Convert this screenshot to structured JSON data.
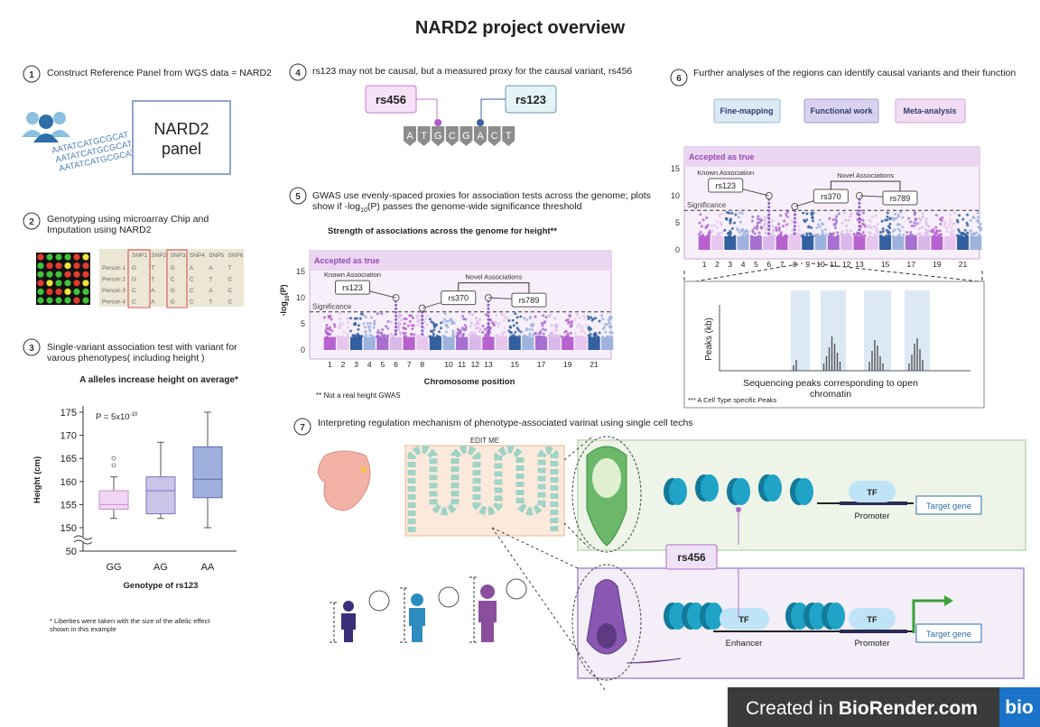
{
  "title": "NARD2 project overview",
  "panel1": {
    "number": "1",
    "heading": "Construct Reference Panel from WGS data = NARD2",
    "dna": [
      "AATATCATGCGCAT",
      "AATATCATGCGCAT",
      "AATATCATGCGCAT"
    ],
    "panel_label": "NARD2 panel"
  },
  "panel2": {
    "number": "2",
    "heading": "Genotyping using microarray Chip and Imputation using NARD2",
    "table": {
      "header": [
        "SNP1",
        "SNP2",
        "SNP3",
        "SNP4",
        "SNP5",
        "SNP6"
      ],
      "rows": [
        [
          "Person 1",
          "G",
          "T",
          "G",
          "A",
          "A",
          "T"
        ],
        [
          "Person 2",
          "G",
          "T",
          "C",
          "C",
          "T",
          "C"
        ],
        [
          "Person 3",
          "C",
          "A",
          "G",
          "C",
          "A",
          "C"
        ],
        [
          "Person 4",
          "C",
          "A",
          "G",
          "C",
          "T",
          "C"
        ]
      ]
    }
  },
  "panel3": {
    "number": "3",
    "heading": "Single-variant association test with variant for varous phenotypes( including height )",
    "chart_data": {
      "type": "box",
      "title": "A alleles increase height on average*",
      "annotation": "P = 5x10",
      "annotation_superscript": "-10",
      "y_label": "Height (cm)",
      "x_label": "Genotype of rs123",
      "categories": [
        "GG",
        "AG",
        "AA"
      ],
      "colors": [
        "#f1d6f3",
        "#cac4e8",
        "#9fb0dc"
      ],
      "stroke_colors": [
        "#c58fd0",
        "#7d74b8",
        "#5a6cb0"
      ],
      "boxes": [
        {
          "whisker_low": 152,
          "q1": 154,
          "median": 155,
          "q3": 158,
          "whisker_high": 161,
          "outliers": [
            163.5,
            165
          ]
        },
        {
          "whisker_low": 152,
          "q1": 153,
          "median": 158,
          "q3": 161,
          "whisker_high": 168.5,
          "outliers": []
        },
        {
          "whisker_low": 150,
          "q1": 156.5,
          "median": 160.5,
          "q3": 167.5,
          "whisker_high": 175,
          "outliers": []
        }
      ],
      "ylim": [
        50,
        175
      ],
      "yticks": [
        50,
        150,
        155,
        160,
        165,
        170,
        175
      ]
    },
    "footnote": "* Liberties were taken with the size of the allelic effect shown in this example"
  },
  "panel4": {
    "number": "4",
    "heading": "rs123 may not be causal, but a measured proxy for the causal variant, rs456",
    "causal": "rs456",
    "proxy": "rs123",
    "sequence": [
      "A",
      "T",
      "G",
      "C",
      "G",
      "A",
      "C",
      "T"
    ]
  },
  "panel5": {
    "number": "5",
    "heading": [
      "GWAS use evenly-spaced proxies for association tests across the genome; plots show if -log",
      "10",
      "(P) passes the genome-wide significance threshold"
    ],
    "chart_data": {
      "type": "manhattan",
      "title": "Strength of associations across the genome for height**",
      "band_label": "Accepted as true",
      "y_label": [
        "-log",
        "10",
        "(P)"
      ],
      "x_label": "Chromosome position",
      "categories": [
        "1",
        "2",
        "3",
        "4",
        "5",
        "6",
        "7",
        "8",
        null,
        "10",
        "11",
        "12",
        "13",
        null,
        "15",
        null,
        "17",
        null,
        "19",
        null,
        "21",
        null
      ],
      "ylim": [
        0,
        19
      ],
      "yticks": [
        0,
        5,
        10,
        15
      ],
      "significance": 7.3,
      "significance_label": "Significance",
      "known_label": "Known Association",
      "novel_label": "Novel Associations",
      "highlights": [
        {
          "label": "rs123",
          "x": "6",
          "value": 10
        },
        {
          "label": "rs370",
          "x": "8",
          "value": 8
        },
        {
          "label": "rs789",
          "x": "13",
          "value": 10
        }
      ]
    },
    "footnote": "** Not a real height GWAS"
  },
  "panel6": {
    "number": "6",
    "heading": "Further analyses of the regions can identify causal variants and their function",
    "buttons": [
      "Fine-mapping",
      "Functional work",
      "Meta-analysis"
    ],
    "chart_data": {
      "type": "manhattan",
      "band_label": "Accepted as true",
      "categories": [
        "1",
        "2",
        "3",
        "4",
        "5",
        "6",
        "7",
        "8",
        "9",
        "10",
        "11",
        "12",
        "13",
        null,
        "15",
        null,
        "17",
        null,
        "19",
        null,
        "21",
        null
      ],
      "ylim": [
        0,
        19
      ],
      "yticks": [
        0,
        5,
        10,
        15
      ],
      "significance": 7.3,
      "significance_label": "Significance",
      "known_label": "Known Association",
      "novel_label": "Novel Associations",
      "highlights": [
        {
          "label": "rs123",
          "x": "6",
          "value": 10
        },
        {
          "label": "rs370",
          "x": "8",
          "value": 8
        },
        {
          "label": "rs789",
          "x": "13",
          "value": 10
        }
      ]
    },
    "peaks": {
      "y_label": "Peaks (kb)",
      "x_label": "Sequencing peaks corresponding to open chromatin",
      "footnote": "*** A Cell Type specific Peaks"
    }
  },
  "panel7": {
    "number": "7",
    "heading": "Interpreting regulation mechanism of phenotype-associated varinat using single cell techs",
    "edit_label": "EDIT ME",
    "top_row": {
      "tf": "TF",
      "promoter": "Promoter",
      "target": "Target gene"
    },
    "variant": "rs456",
    "bottom_row": {
      "tf_enhancer": "TF",
      "enhancer": "Enhancer",
      "tf_promoter": "TF",
      "promoter": "Promoter",
      "target": "Target gene"
    }
  },
  "footer": {
    "created": "Created in",
    "brand": "BioRender.com",
    "logo": "bio"
  }
}
